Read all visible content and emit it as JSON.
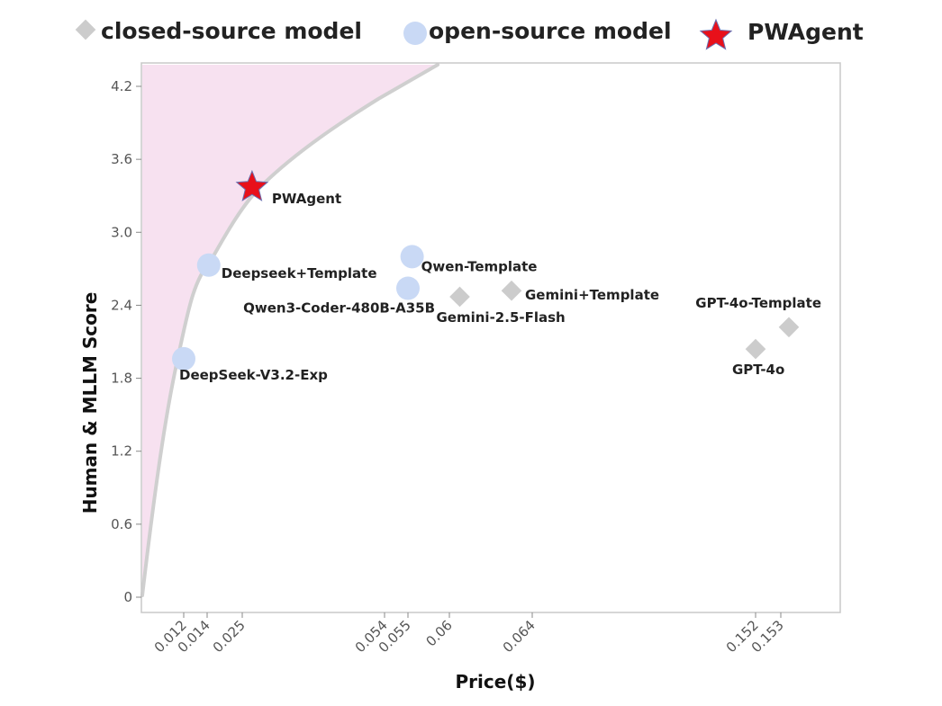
{
  "chart_data": {
    "type": "scatter",
    "xlabel": "Price($)",
    "ylabel": "Human & MLLM Score",
    "x_ticks": [
      "0.012",
      "0.014",
      "0.025",
      "0.054",
      "0.055",
      "0.06",
      "0.064",
      "0.152",
      "0.153"
    ],
    "y_ticks": [
      "0",
      "0.6",
      "1.2",
      "1.8",
      "2.4",
      "3.0",
      "3.6",
      "4.2"
    ],
    "ylim": [
      0,
      4.35
    ],
    "grid": false,
    "legend": {
      "position": "top",
      "entries": [
        {
          "label": "closed-source model",
          "marker": "diamond",
          "color": "#cccccc"
        },
        {
          "label": "open-source model",
          "marker": "circle",
          "color": "#c9d9f5"
        },
        {
          "label": "PWAgent",
          "marker": "star",
          "color": "#e8101a"
        }
      ]
    },
    "frontier": {
      "fill_color": "#f7e1f0",
      "line_color": "#cfcfcf"
    },
    "points": [
      {
        "name": "PWAgent",
        "group": "PWAgent",
        "x": 0.027,
        "y": 3.37,
        "label": "PWAgent"
      },
      {
        "name": "Deepseek+Template",
        "group": "open-source",
        "x": 0.0145,
        "y": 2.73,
        "label": "Deepseek+Template"
      },
      {
        "name": "DeepSeek-V3.2-Exp",
        "group": "open-source",
        "x": 0.012,
        "y": 1.96,
        "label": "DeepSeek-V3.2-Exp"
      },
      {
        "name": "Qwen-Template",
        "group": "open-source",
        "x": 0.0555,
        "y": 2.8,
        "label": "Qwen-Template"
      },
      {
        "name": "Qwen3-Coder-480B-A35B",
        "group": "open-source",
        "x": 0.055,
        "y": 2.54,
        "label": "Qwen3-Coder-480B-A35B"
      },
      {
        "name": "Gemini-2.5-Flash",
        "group": "closed-source",
        "x": 0.0605,
        "y": 2.47,
        "label": "Gemini-2.5-Flash"
      },
      {
        "name": "Gemini+Template",
        "group": "closed-source",
        "x": 0.063,
        "y": 2.52,
        "label": "Gemini+Template"
      },
      {
        "name": "GPT-4o",
        "group": "closed-source",
        "x": 0.152,
        "y": 2.04,
        "label": "GPT-4o"
      },
      {
        "name": "GPT-4o-Template",
        "group": "closed-source",
        "x": 0.154,
        "y": 2.22,
        "label": "GPT-4o-Template"
      }
    ]
  }
}
